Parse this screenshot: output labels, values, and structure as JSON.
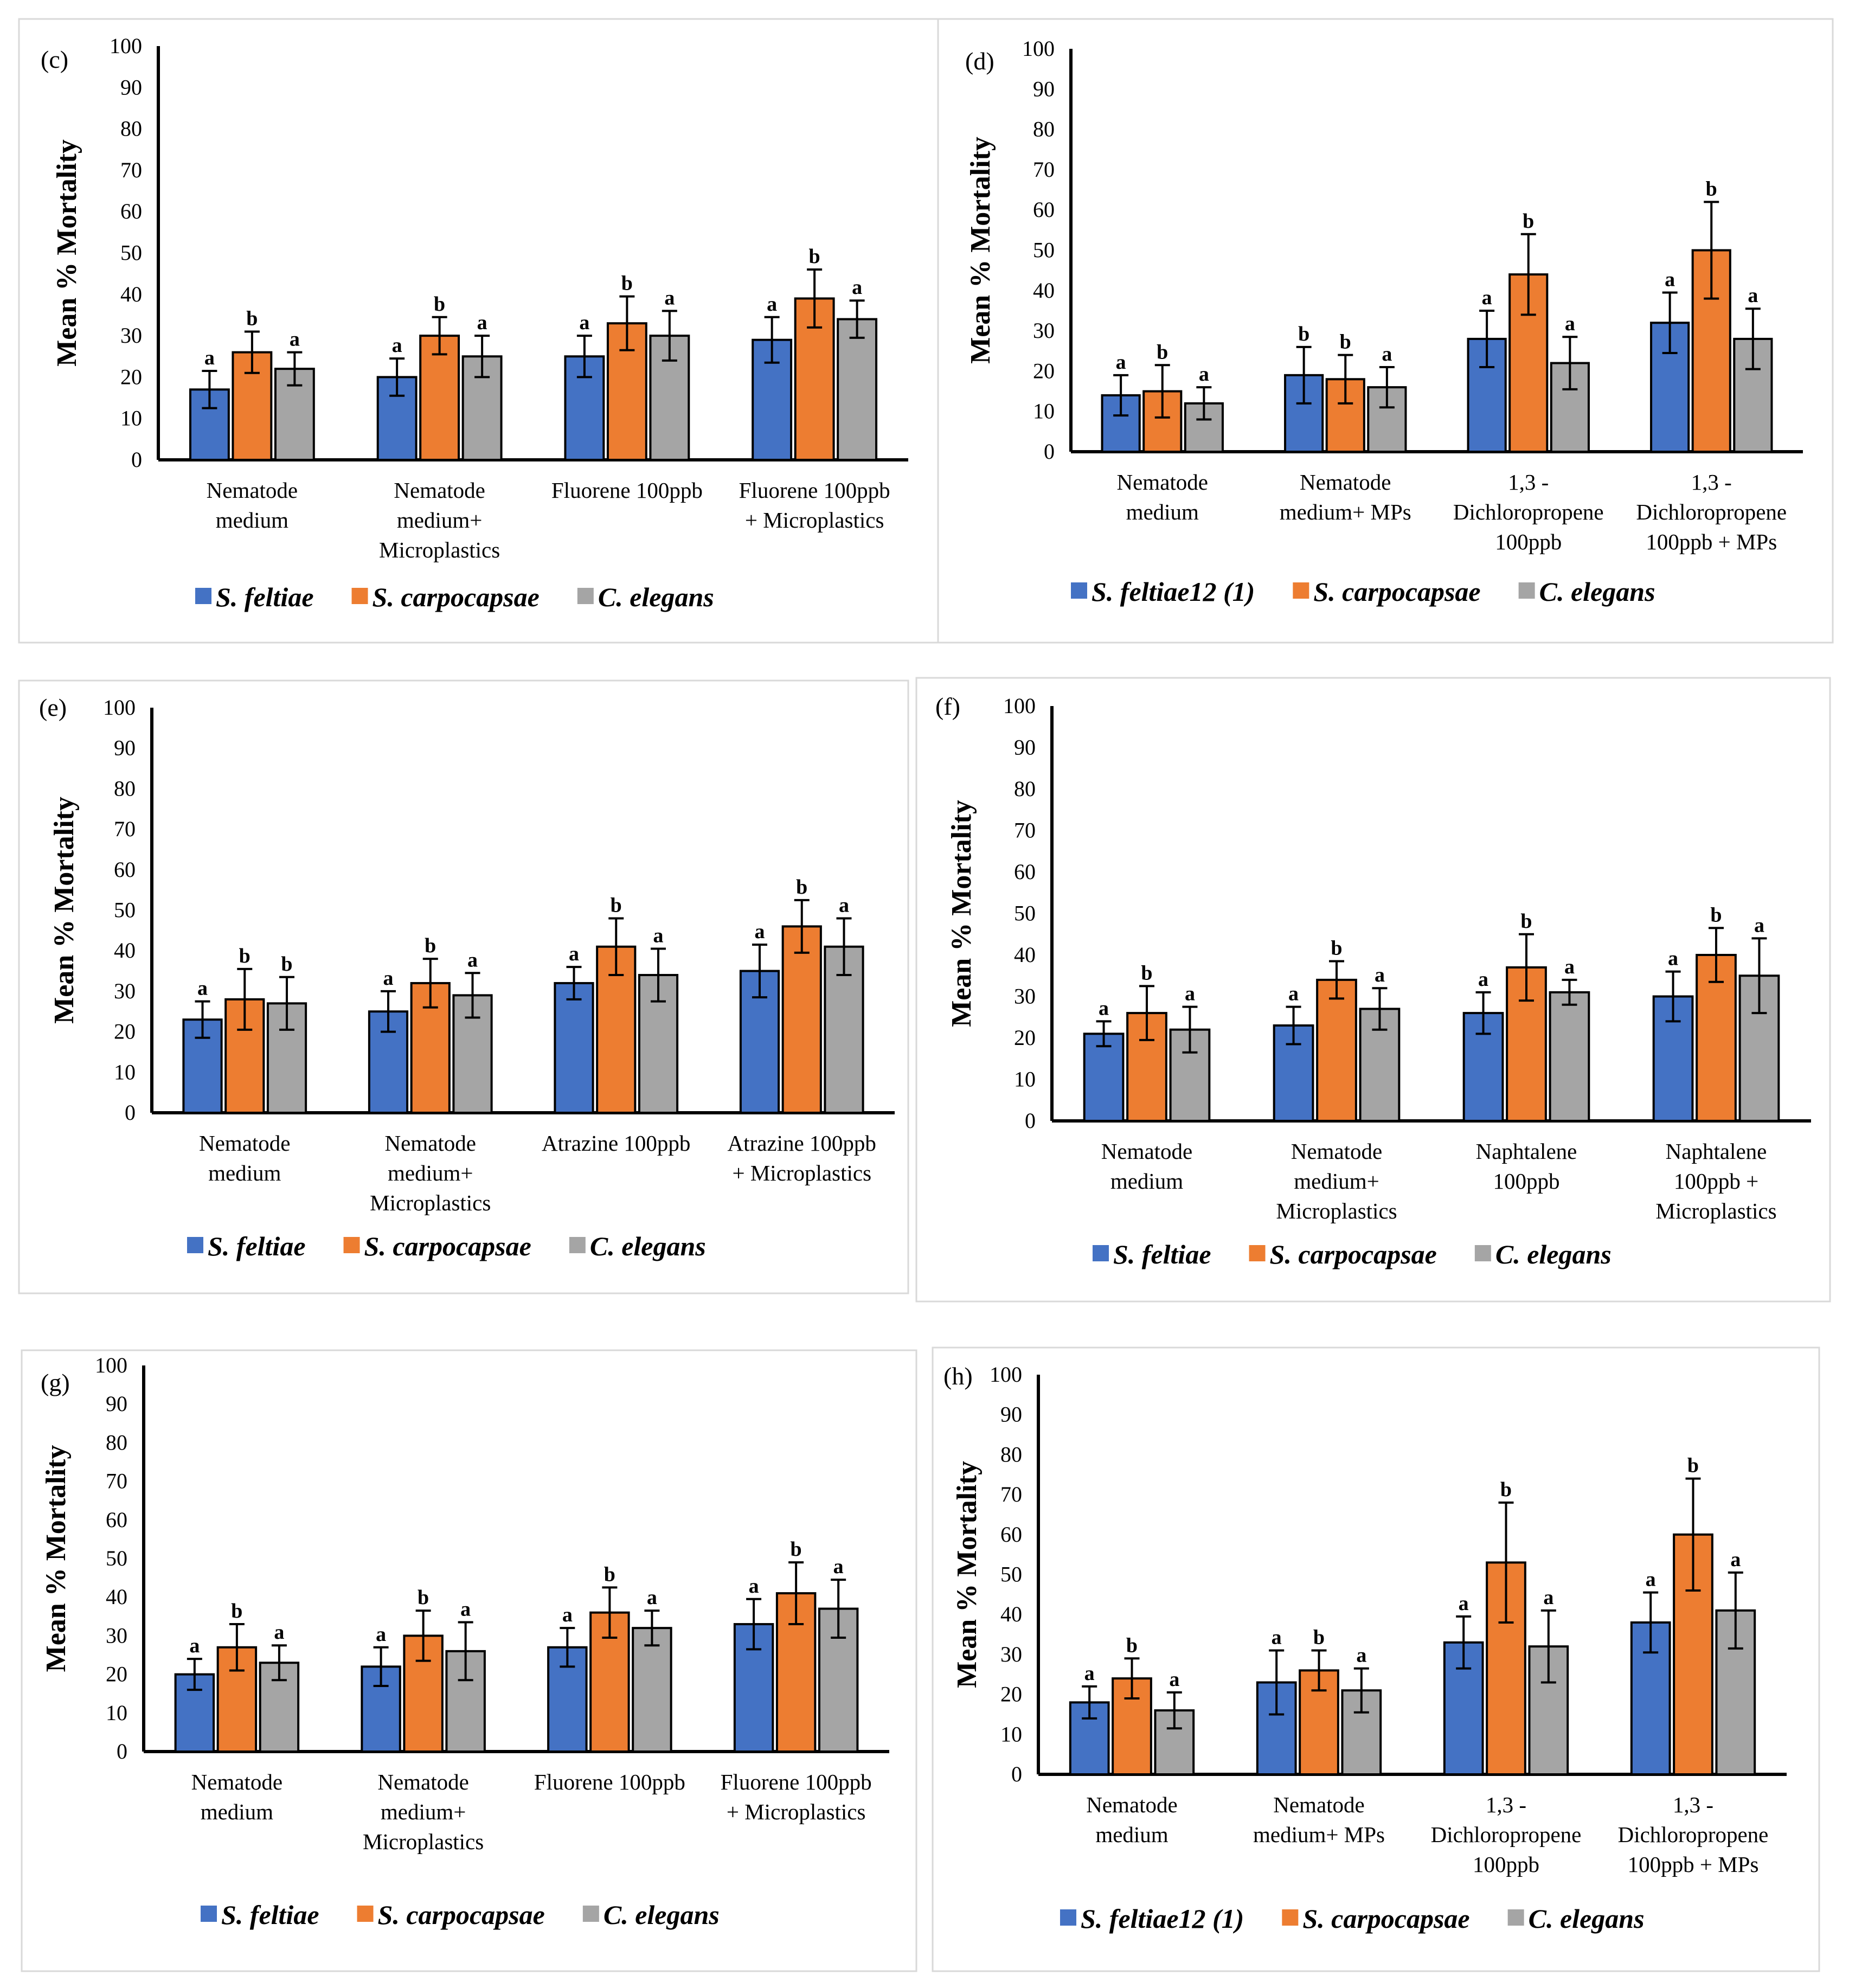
{
  "colors": {
    "S_feltiae": "#4472C4",
    "S_carpocapsae": "#ED7D31",
    "C_elegans": "#A5A5A5"
  },
  "chart_data": [
    {
      "panel": "(c)",
      "type": "bar",
      "ylabel": "Mean % Mortality",
      "ylim": [
        0,
        100
      ],
      "yticks": [
        "0",
        "10",
        "20",
        "30",
        "40",
        "50",
        "60",
        "70",
        "80",
        "90",
        "100"
      ],
      "categories": [
        [
          "Nematode",
          "medium"
        ],
        [
          "Nematode",
          "medium+",
          "Microplastics"
        ],
        [
          "Fluorene 100ppb"
        ],
        [
          "Fluorene 100ppb",
          "+ Microplastics"
        ]
      ],
      "series": [
        {
          "name": "S. feltiae",
          "values": [
            17,
            20,
            25,
            29
          ],
          "errors": [
            4.5,
            4.5,
            5,
            5.5
          ],
          "letters": [
            "a",
            "a",
            "a",
            "a"
          ]
        },
        {
          "name": "S. carpocapsae",
          "values": [
            26,
            30,
            33,
            39
          ],
          "errors": [
            5,
            4.5,
            6.5,
            7
          ],
          "letters": [
            "b",
            "b",
            "b",
            "b"
          ]
        },
        {
          "name": "C. elegans",
          "values": [
            22,
            25,
            30,
            34
          ],
          "errors": [
            4,
            5,
            6,
            4.5
          ],
          "letters": [
            "a",
            "a",
            "a",
            "a"
          ]
        }
      ]
    },
    {
      "panel": "(d)",
      "type": "bar",
      "ylabel": "Mean % Mortality",
      "ylim": [
        0,
        100
      ],
      "yticks": [
        "0",
        "10",
        "20",
        "30",
        "40",
        "50",
        "60",
        "70",
        "80",
        "90",
        "100"
      ],
      "categories": [
        [
          "Nematode",
          "medium"
        ],
        [
          "Nematode",
          "medium+ MPs"
        ],
        [
          "1,3 -",
          "Dichloropropene",
          "100ppb"
        ],
        [
          "1,3 -",
          "Dichloropropene",
          "100ppb + MPs"
        ]
      ],
      "series": [
        {
          "name": "S. feltiae12 (1)",
          "values": [
            14,
            19,
            28,
            32
          ],
          "errors": [
            5,
            7,
            7,
            7.5
          ],
          "letters": [
            "a",
            "b",
            "a",
            "a"
          ]
        },
        {
          "name": "S. carpocapsae",
          "values": [
            15,
            18,
            44,
            50
          ],
          "errors": [
            6.5,
            6,
            10,
            12
          ],
          "letters": [
            "b",
            "b",
            "b",
            "b"
          ]
        },
        {
          "name": "C. elegans",
          "values": [
            12,
            16,
            22,
            28
          ],
          "errors": [
            4,
            5,
            6.5,
            7.5
          ],
          "letters": [
            "a",
            "a",
            "a",
            "a"
          ]
        }
      ]
    },
    {
      "panel": "(e)",
      "type": "bar",
      "ylabel": "Mean % Mortality",
      "ylim": [
        0,
        100
      ],
      "yticks": [
        "0",
        "10",
        "20",
        "30",
        "40",
        "50",
        "60",
        "70",
        "80",
        "90",
        "100"
      ],
      "categories": [
        [
          "Nematode",
          "medium"
        ],
        [
          "Nematode",
          "medium+",
          "Microplastics"
        ],
        [
          "Atrazine 100ppb"
        ],
        [
          "Atrazine 100ppb",
          "+ Microplastics"
        ]
      ],
      "series": [
        {
          "name": "S. feltiae",
          "values": [
            23,
            25,
            32,
            35
          ],
          "errors": [
            4.5,
            5,
            4,
            6.5
          ],
          "letters": [
            "a",
            "a",
            "a",
            "a"
          ]
        },
        {
          "name": "S. carpocapsae",
          "values": [
            28,
            32,
            41,
            46
          ],
          "errors": [
            7.5,
            6,
            7,
            6.5
          ],
          "letters": [
            "b",
            "b",
            "b",
            "b"
          ]
        },
        {
          "name": "C. elegans",
          "values": [
            27,
            29,
            34,
            41
          ],
          "errors": [
            6.5,
            5.5,
            6.5,
            7
          ],
          "letters": [
            "b",
            "a",
            "a",
            "a"
          ]
        }
      ]
    },
    {
      "panel": "(f)",
      "type": "bar",
      "ylabel": "Mean % Mortality",
      "ylim": [
        0,
        100
      ],
      "yticks": [
        "0",
        "10",
        "20",
        "30",
        "40",
        "50",
        "60",
        "70",
        "80",
        "90",
        "100"
      ],
      "categories": [
        [
          "Nematode",
          "medium"
        ],
        [
          "Nematode",
          "medium+",
          "Microplastics"
        ],
        [
          "Naphtalene",
          "100ppb"
        ],
        [
          "Naphtalene",
          "100ppb +",
          "Microplastics"
        ]
      ],
      "series": [
        {
          "name": "S. feltiae",
          "values": [
            21,
            23,
            26,
            30
          ],
          "errors": [
            3,
            4.5,
            5,
            6
          ],
          "letters": [
            "a",
            "a",
            "a",
            "a"
          ]
        },
        {
          "name": "S. carpocapsae",
          "values": [
            26,
            34,
            37,
            40
          ],
          "errors": [
            6.5,
            4.5,
            8,
            6.5
          ],
          "letters": [
            "b",
            "b",
            "b",
            "b"
          ]
        },
        {
          "name": "C. elegans",
          "values": [
            22,
            27,
            31,
            35
          ],
          "errors": [
            5.5,
            5,
            3,
            9
          ],
          "letters": [
            "a",
            "a",
            "a",
            "a"
          ]
        }
      ]
    },
    {
      "panel": "(g)",
      "type": "bar",
      "ylabel": "Mean % Mortality",
      "ylim": [
        0,
        100
      ],
      "yticks": [
        "0",
        "10",
        "20",
        "30",
        "40",
        "50",
        "60",
        "70",
        "80",
        "90",
        "100"
      ],
      "categories": [
        [
          "Nematode",
          "medium"
        ],
        [
          "Nematode",
          "medium+",
          "Microplastics"
        ],
        [
          "Fluorene 100ppb"
        ],
        [
          "Fluorene 100ppb",
          "+ Microplastics"
        ]
      ],
      "series": [
        {
          "name": "S. feltiae",
          "values": [
            20,
            22,
            27,
            33
          ],
          "errors": [
            4,
            5,
            5,
            6.5
          ],
          "letters": [
            "a",
            "a",
            "a",
            "a"
          ]
        },
        {
          "name": "S. carpocapsae",
          "values": [
            27,
            30,
            36,
            41
          ],
          "errors": [
            6,
            6.5,
            6.5,
            8
          ],
          "letters": [
            "b",
            "b",
            "b",
            "b"
          ]
        },
        {
          "name": "C. elegans",
          "values": [
            23,
            26,
            32,
            37
          ],
          "errors": [
            4.5,
            7.5,
            4.5,
            7.5
          ],
          "letters": [
            "a",
            "a",
            "a",
            "a"
          ]
        }
      ]
    },
    {
      "panel": "(h)",
      "type": "bar",
      "ylabel": "Mean % Mortality",
      "ylim": [
        0,
        100
      ],
      "yticks": [
        "0",
        "10",
        "20",
        "30",
        "40",
        "50",
        "60",
        "70",
        "80",
        "90",
        "100"
      ],
      "categories": [
        [
          "Nematode",
          "medium"
        ],
        [
          "Nematode",
          "medium+ MPs"
        ],
        [
          "1,3 -",
          "Dichloropropene",
          "100ppb"
        ],
        [
          "1,3 -",
          "Dichloropropene",
          "100ppb + MPs"
        ]
      ],
      "series": [
        {
          "name": "S. feltiae12 (1)",
          "values": [
            18,
            23,
            33,
            38
          ],
          "errors": [
            4,
            8,
            6.5,
            7.5
          ],
          "letters": [
            "a",
            "a",
            "a",
            "a"
          ]
        },
        {
          "name": "S. carpocapsae",
          "values": [
            24,
            26,
            53,
            60
          ],
          "errors": [
            5,
            5,
            15,
            14
          ],
          "letters": [
            "b",
            "b",
            "b",
            "b"
          ]
        },
        {
          "name": "C. elegans",
          "values": [
            16,
            21,
            32,
            41
          ],
          "errors": [
            4.5,
            5.5,
            9,
            9.5
          ],
          "letters": [
            "a",
            "a",
            "a",
            "a"
          ]
        }
      ]
    }
  ]
}
